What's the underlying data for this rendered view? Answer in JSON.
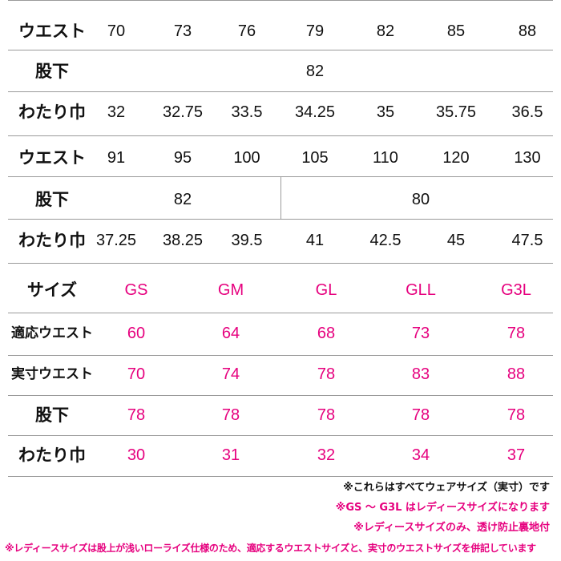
{
  "table1": {
    "waist_label": "ウエスト",
    "waist": [
      "70",
      "73",
      "76",
      "79",
      "82",
      "85",
      "88"
    ],
    "inseam_label": "股下",
    "inseam": "82",
    "thigh_label": "わたり巾",
    "thigh": [
      "32",
      "32.75",
      "33.5",
      "34.25",
      "35",
      "35.75",
      "36.5"
    ]
  },
  "table2": {
    "waist_label": "ウエスト",
    "waist": [
      "91",
      "95",
      "100",
      "105",
      "110",
      "120",
      "130"
    ],
    "inseam_label": "股下",
    "inseam_left": "82",
    "inseam_right": "80",
    "thigh_label": "わたり巾",
    "thigh": [
      "37.25",
      "38.25",
      "39.5",
      "41",
      "42.5",
      "45",
      "47.5"
    ]
  },
  "table3": {
    "size_label": "サイズ",
    "sizes": [
      "GS",
      "GM",
      "GL",
      "GLL",
      "G3L"
    ],
    "fit_waist_label": "適応ウエスト",
    "fit_waist": [
      "60",
      "64",
      "68",
      "73",
      "78"
    ],
    "actual_waist_label": "実寸ウエスト",
    "actual_waist": [
      "70",
      "74",
      "78",
      "83",
      "88"
    ],
    "inseam_label": "股下",
    "inseam": [
      "78",
      "78",
      "78",
      "78",
      "78"
    ],
    "thigh_label": "わたり巾",
    "thigh": [
      "30",
      "31",
      "32",
      "34",
      "37"
    ]
  },
  "notes": {
    "note1": "※これらはすべてウェアサイズ（実寸）です",
    "note2": "※GS 〜 G3L はレディースサイズになります",
    "note3": "※レディースサイズのみ、透け防止裏地付",
    "note4": "※レディースサイズは股上が浅いローライズ仕様のため、適応するウエストサイズと、実寸のウエストサイズを併記しています"
  },
  "colors": {
    "ladies_accent": "#e6007e",
    "rule": "#9a9a9a",
    "text": "#111111"
  }
}
